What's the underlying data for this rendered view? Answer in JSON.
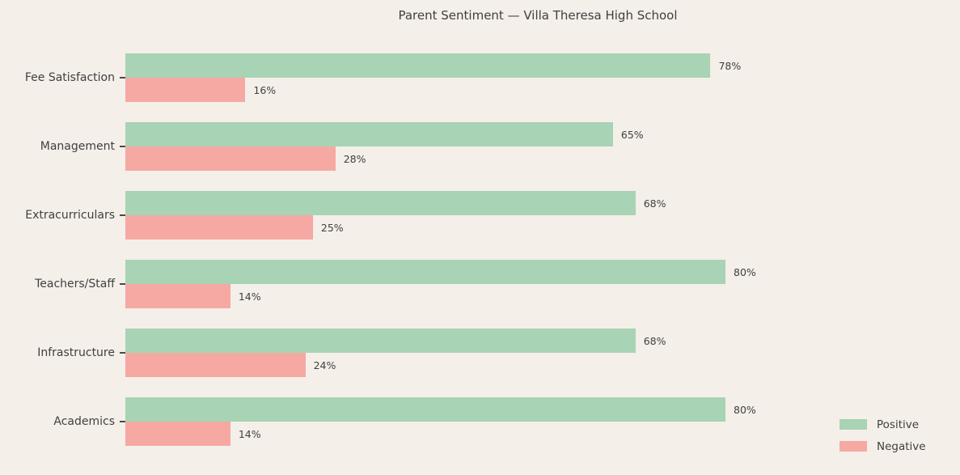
{
  "chart_data": {
    "type": "bar",
    "orientation": "horizontal",
    "title": "Parent Sentiment — Villa Theresa High School",
    "categories": [
      "Fee Satisfaction",
      "Management",
      "Extracurriculars",
      "Teachers/Staff",
      "Infrastructure",
      "Academics"
    ],
    "series": [
      {
        "name": "Positive",
        "color": "#a8d3b4",
        "values": [
          78,
          65,
          68,
          80,
          68,
          80
        ]
      },
      {
        "name": "Negative",
        "color": "#f6a8a3",
        "values": [
          16,
          28,
          25,
          14,
          24,
          14
        ]
      }
    ],
    "value_suffix": "%",
    "xlim": [
      0,
      84
    ],
    "grid": false,
    "legend_position": "lower right",
    "background_color": "#f4efe9",
    "text_color": "#404040"
  }
}
